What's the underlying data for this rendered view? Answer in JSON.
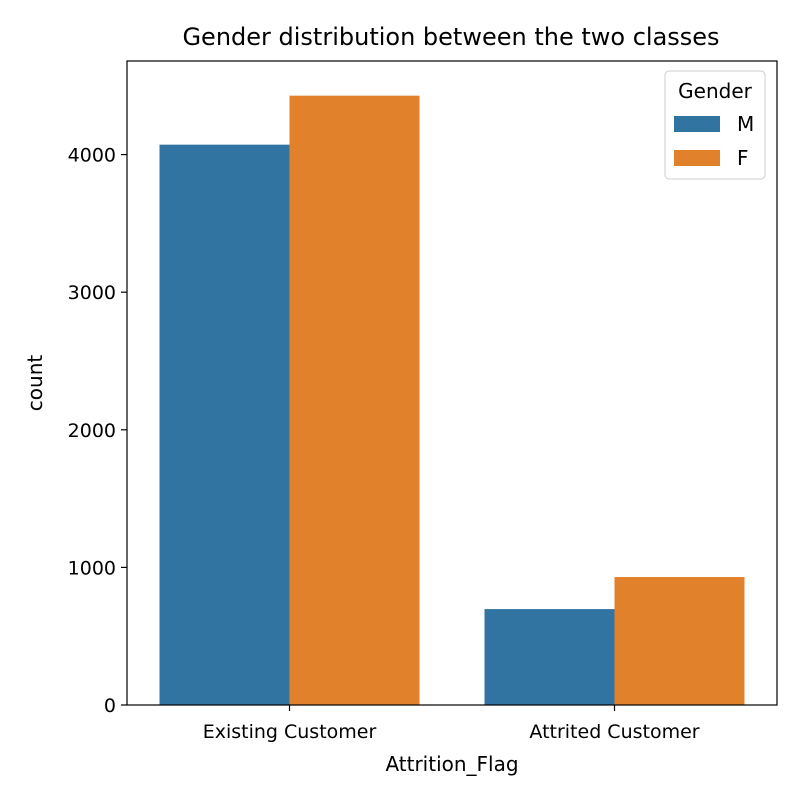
{
  "chart_data": {
    "type": "bar",
    "title": "Gender distribution between the two classes",
    "xlabel": "Attrition_Flag",
    "ylabel": "count",
    "categories": [
      "Existing Customer",
      "Attrited Customer"
    ],
    "series": [
      {
        "name": "M",
        "values": [
          4072,
          697
        ],
        "color": "#3274a1"
      },
      {
        "name": "F",
        "values": [
          4428,
          930
        ],
        "color": "#e1812c"
      }
    ],
    "ylim": [
      0,
      4680
    ],
    "yticks": [
      0,
      1000,
      2000,
      3000,
      4000
    ],
    "grid": false,
    "legend": {
      "title": "Gender",
      "placement": "top-right"
    }
  }
}
